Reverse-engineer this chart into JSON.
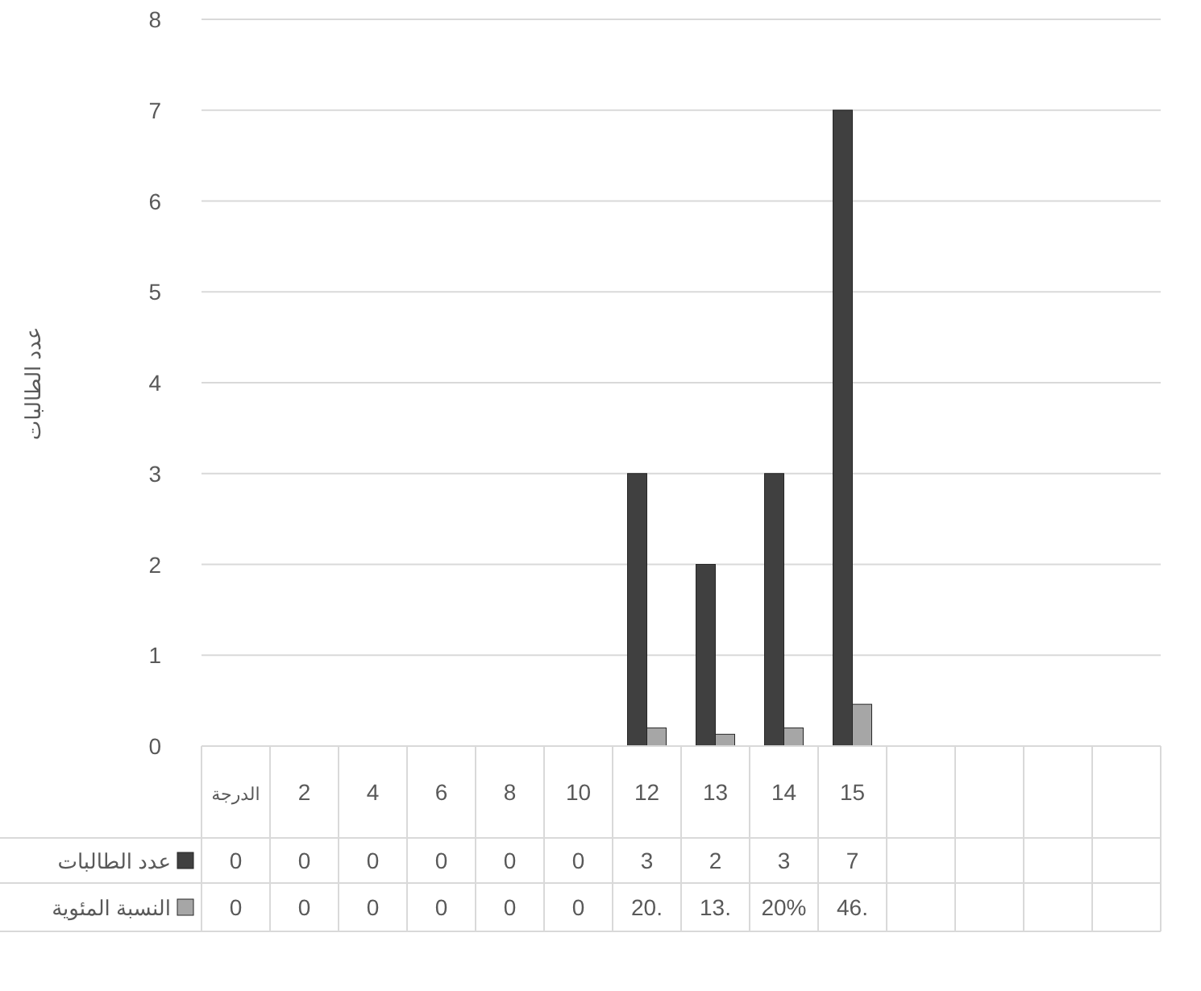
{
  "chart_data": {
    "type": "bar",
    "ylabel": "عدد الطالبات",
    "categories": [
      "الدرجة",
      "2",
      "4",
      "6",
      "8",
      "10",
      "12",
      "13",
      "14",
      "15",
      null,
      null,
      null,
      null
    ],
    "series": [
      {
        "name": "عدد الطالبات",
        "color": "#404040",
        "values": [
          0,
          0,
          0,
          0,
          0,
          0,
          3,
          2,
          3,
          7,
          null,
          null,
          null,
          null
        ],
        "value_labels": [
          "0",
          "0",
          "0",
          "0",
          "0",
          "0",
          "3",
          "2",
          "3",
          "7",
          null,
          null,
          null,
          null
        ]
      },
      {
        "name": "النسبة المئوية",
        "color": "#a6a6a6",
        "values": [
          0,
          0,
          0,
          0,
          0,
          0,
          0.2,
          0.13,
          0.2,
          0.46,
          null,
          null,
          null,
          null
        ],
        "value_labels": [
          "0",
          "0",
          "0",
          "0",
          "0",
          "0",
          null,
          null,
          "20%",
          null,
          null,
          null,
          null,
          null
        ]
      }
    ],
    "annotations": [
      "20.",
      "13.",
      "46."
    ],
    "ylim": [
      0,
      8
    ],
    "yticks": [
      0,
      1,
      2,
      3,
      4,
      5,
      6,
      7,
      8
    ],
    "grid": "y",
    "legend": "bottom"
  }
}
